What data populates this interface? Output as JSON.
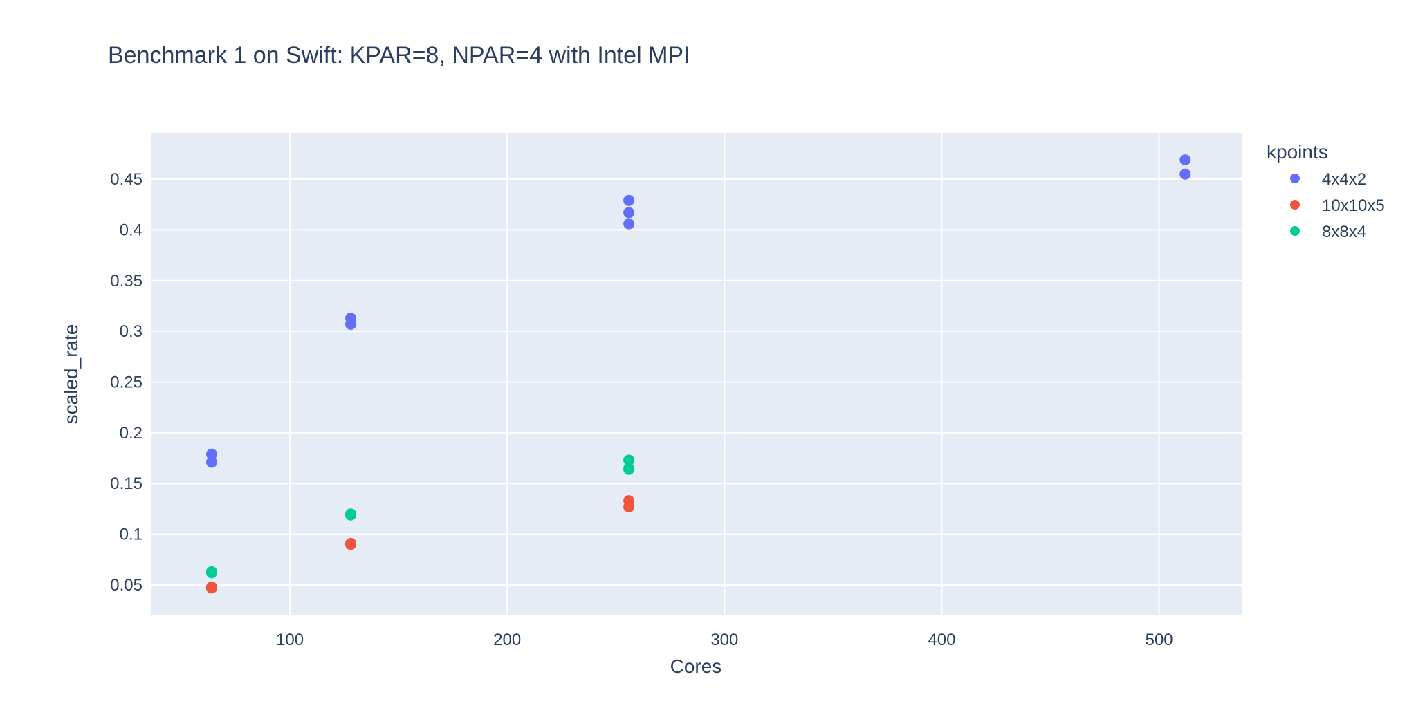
{
  "chart_data": {
    "type": "scatter",
    "title": "Benchmark 1 on Swift: KPAR=8, NPAR=4 with Intel MPI",
    "xlabel": "Cores",
    "ylabel": "scaled_rate",
    "xlim": [
      36,
      538
    ],
    "ylim": [
      0.02,
      0.495
    ],
    "xticks": [
      100,
      200,
      300,
      400,
      500
    ],
    "yticks": [
      0.05,
      0.1,
      0.15,
      0.2,
      0.25,
      0.3,
      0.35,
      0.4,
      0.45
    ],
    "grid": true,
    "legend": {
      "title": "kpoints",
      "position": "top-right-outside"
    },
    "colors": {
      "plot_bg": "#e5ecf6",
      "text": "#2a3f5f"
    },
    "series": [
      {
        "name": "4x4x2",
        "color": "#636efa",
        "points": [
          {
            "x": 64,
            "y": 0.179
          },
          {
            "x": 64,
            "y": 0.171
          },
          {
            "x": 128,
            "y": 0.313
          },
          {
            "x": 128,
            "y": 0.307
          },
          {
            "x": 256,
            "y": 0.429
          },
          {
            "x": 256,
            "y": 0.417
          },
          {
            "x": 256,
            "y": 0.406
          },
          {
            "x": 512,
            "y": 0.469
          },
          {
            "x": 512,
            "y": 0.455
          }
        ]
      },
      {
        "name": "10x10x5",
        "color": "#EF553B",
        "points": [
          {
            "x": 64,
            "y": 0.048
          },
          {
            "x": 64,
            "y": 0.047
          },
          {
            "x": 128,
            "y": 0.091
          },
          {
            "x": 128,
            "y": 0.09
          },
          {
            "x": 256,
            "y": 0.133
          },
          {
            "x": 256,
            "y": 0.127
          }
        ]
      },
      {
        "name": "8x8x4",
        "color": "#00cc96",
        "points": [
          {
            "x": 64,
            "y": 0.063
          },
          {
            "x": 64,
            "y": 0.062
          },
          {
            "x": 128,
            "y": 0.119
          },
          {
            "x": 128,
            "y": 0.12
          },
          {
            "x": 256,
            "y": 0.173
          },
          {
            "x": 256,
            "y": 0.165
          },
          {
            "x": 256,
            "y": 0.164
          }
        ]
      }
    ]
  }
}
